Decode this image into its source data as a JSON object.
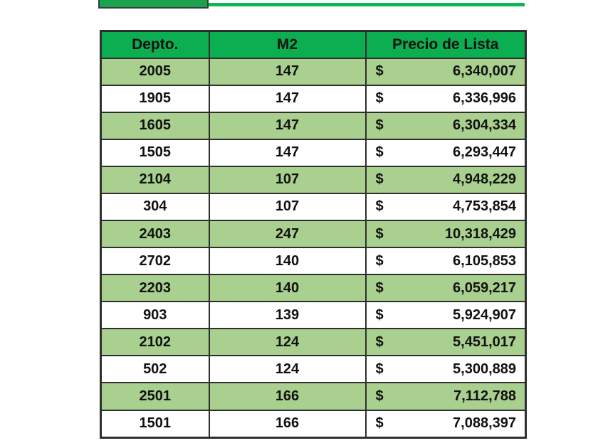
{
  "top_decor": {
    "box_color": "#1BA24F",
    "line_color": "#0FB658"
  },
  "table": {
    "headers": [
      "Depto.",
      "M2",
      "Precio de Lista"
    ],
    "currency_symbol": "$",
    "rows": [
      {
        "depto": "2005",
        "m2": "147",
        "precio": "6,340,007",
        "banded": true
      },
      {
        "depto": "1905",
        "m2": "147",
        "precio": "6,336,996",
        "banded": false
      },
      {
        "depto": "1605",
        "m2": "147",
        "precio": "6,304,334",
        "banded": true
      },
      {
        "depto": "1505",
        "m2": "147",
        "precio": "6,293,447",
        "banded": false
      },
      {
        "depto": "2104",
        "m2": "107",
        "precio": "4,948,229",
        "banded": true
      },
      {
        "depto": "304",
        "m2": "107",
        "precio": "4,753,854",
        "banded": false
      },
      {
        "depto": "2403",
        "m2": "247",
        "precio": "10,318,429",
        "banded": true
      },
      {
        "depto": "2702",
        "m2": "140",
        "precio": "6,105,853",
        "banded": false
      },
      {
        "depto": "2203",
        "m2": "140",
        "precio": "6,059,217",
        "banded": true
      },
      {
        "depto": "903",
        "m2": "139",
        "precio": "5,924,907",
        "banded": false
      },
      {
        "depto": "2102",
        "m2": "124",
        "precio": "5,451,017",
        "banded": true
      },
      {
        "depto": "502",
        "m2": "124",
        "precio": "5,300,889",
        "banded": false
      },
      {
        "depto": "2501",
        "m2": "166",
        "precio": "7,112,788",
        "banded": true
      },
      {
        "depto": "1501",
        "m2": "166",
        "precio": "7,088,397",
        "banded": false
      }
    ],
    "colors": {
      "header_bg": "#0CAE52",
      "band_bg": "#A9D08E",
      "row_bg": "#FFFFFF",
      "border": "#2e2e2e",
      "text": "#111111"
    }
  }
}
